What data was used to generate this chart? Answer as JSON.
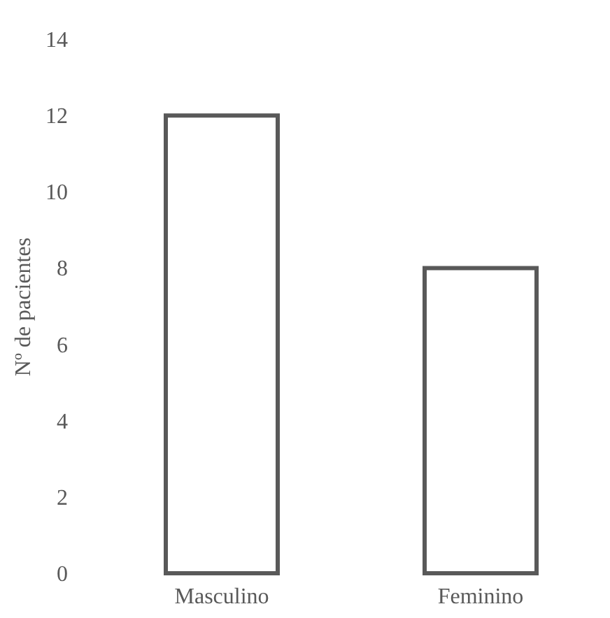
{
  "chart_data": {
    "type": "bar",
    "ylabel": "Nº de pacientes",
    "categories": [
      "Masculino",
      "Feminino"
    ],
    "values": [
      12,
      8
    ],
    "color": "#595959",
    "ylim": [
      0,
      14
    ],
    "yticks": [
      0,
      2,
      4,
      6,
      8,
      10,
      12,
      14
    ],
    "grid": false
  }
}
